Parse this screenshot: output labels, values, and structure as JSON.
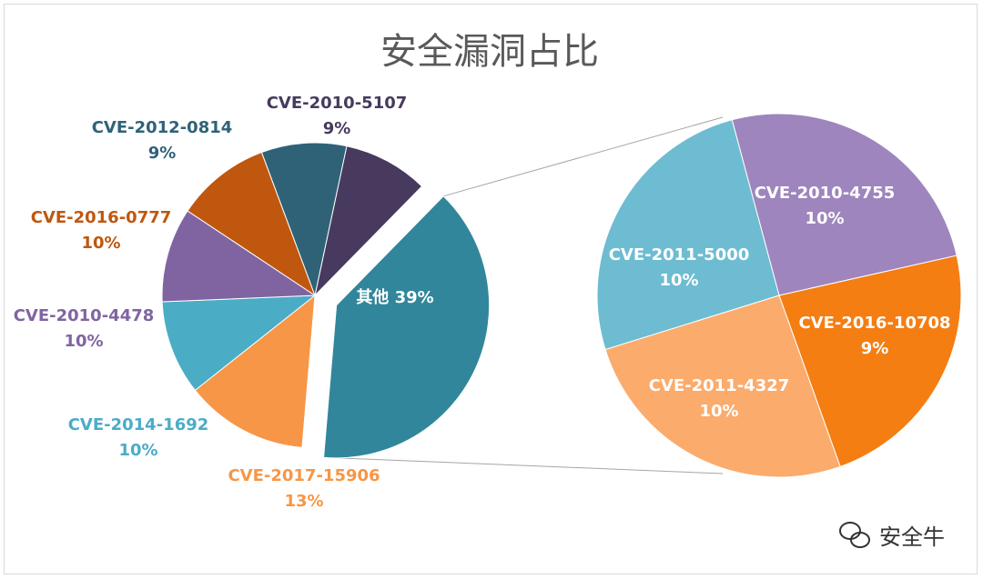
{
  "watermark": {
    "text": "安全牛",
    "icon": "wechat-icon"
  },
  "chart_data": {
    "type": "pie",
    "subtype": "pie-of-pie",
    "title": "安全漏洞占比",
    "main_pie": {
      "slices": [
        {
          "label": "CVE-2010-5107",
          "value": 9,
          "percent_label": "9%",
          "color": "#473a5e"
        },
        {
          "label": "其他",
          "value": 39,
          "percent_label": "39%",
          "color": "#31869b",
          "exploded": true
        },
        {
          "label": "CVE-2017-15906",
          "value": 13,
          "percent_label": "13%",
          "color": "#f79646"
        },
        {
          "label": "CVE-2014-1692",
          "value": 10,
          "percent_label": "10%",
          "color": "#4bacc6"
        },
        {
          "label": "CVE-2010-4478",
          "value": 10,
          "percent_label": "10%",
          "color": "#8064a2"
        },
        {
          "label": "CVE-2016-0777",
          "value": 10,
          "percent_label": "10%",
          "color": "#c0570e"
        },
        {
          "label": "CVE-2012-0814",
          "value": 9,
          "percent_label": "9%",
          "color": "#2f6277"
        }
      ]
    },
    "secondary_pie": {
      "of": "其他",
      "slices": [
        {
          "label": "CVE-2010-4755",
          "value": 10,
          "percent_label": "10%",
          "color": "#9e85bd"
        },
        {
          "label": "CVE-2016-10708",
          "value": 9,
          "percent_label": "9%",
          "color": "#f47e12"
        },
        {
          "label": "CVE-2011-4327",
          "value": 10,
          "percent_label": "10%",
          "color": "#fbab6c"
        },
        {
          "label": "CVE-2011-5000",
          "value": 10,
          "percent_label": "10%",
          "color": "#6ebcd1"
        }
      ]
    },
    "label_colors": {
      "CVE-2010-5107": "#473a5e",
      "CVE-2012-0814": "#2f6277",
      "CVE-2016-0777": "#c0570e",
      "CVE-2010-4478": "#8064a2",
      "CVE-2014-1692": "#4bacc6",
      "CVE-2017-15906": "#f79646"
    }
  }
}
